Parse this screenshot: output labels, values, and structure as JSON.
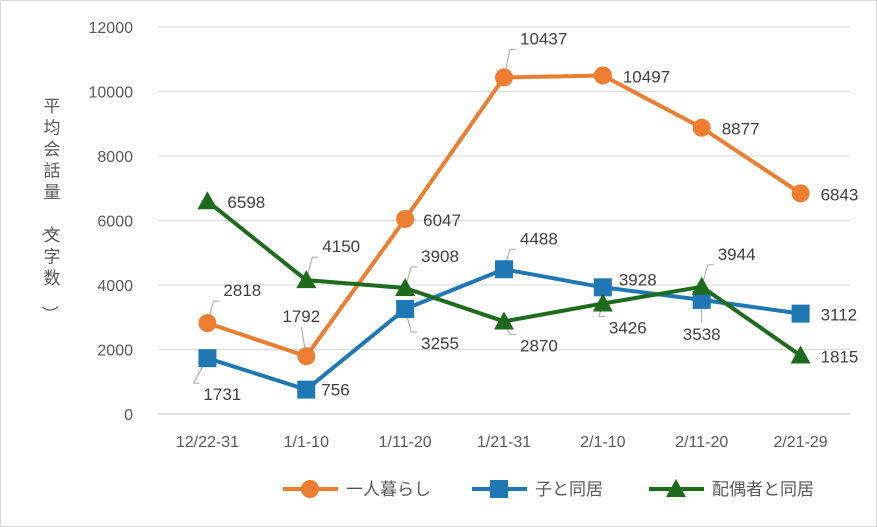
{
  "chart_data": {
    "type": "line",
    "categories": [
      "12/22-31",
      "1/1-10",
      "1/11-20",
      "1/21-31",
      "2/1-10",
      "2/11-20",
      "2/21-29"
    ],
    "ylabel": "平均会話量（文字数）",
    "ylim": [
      0,
      12000
    ],
    "yticks": [
      0,
      2000,
      4000,
      6000,
      8000,
      10000,
      12000
    ],
    "grid": true,
    "legend_position": "bottom",
    "series": [
      {
        "name": "一人暮らし",
        "color": "#ED7D31",
        "marker": "circle",
        "values": [
          2818,
          1792,
          6047,
          10437,
          10497,
          8877,
          6843
        ]
      },
      {
        "name": "子と同居",
        "color": "#1F77B4",
        "marker": "square",
        "values": [
          1731,
          756,
          3255,
          4488,
          3928,
          3538,
          3112
        ]
      },
      {
        "name": "配偶者と同居",
        "color": "#1E6B1E",
        "marker": "triangle",
        "values": [
          6598,
          4150,
          3908,
          2870,
          3426,
          3944,
          1815
        ]
      }
    ]
  }
}
